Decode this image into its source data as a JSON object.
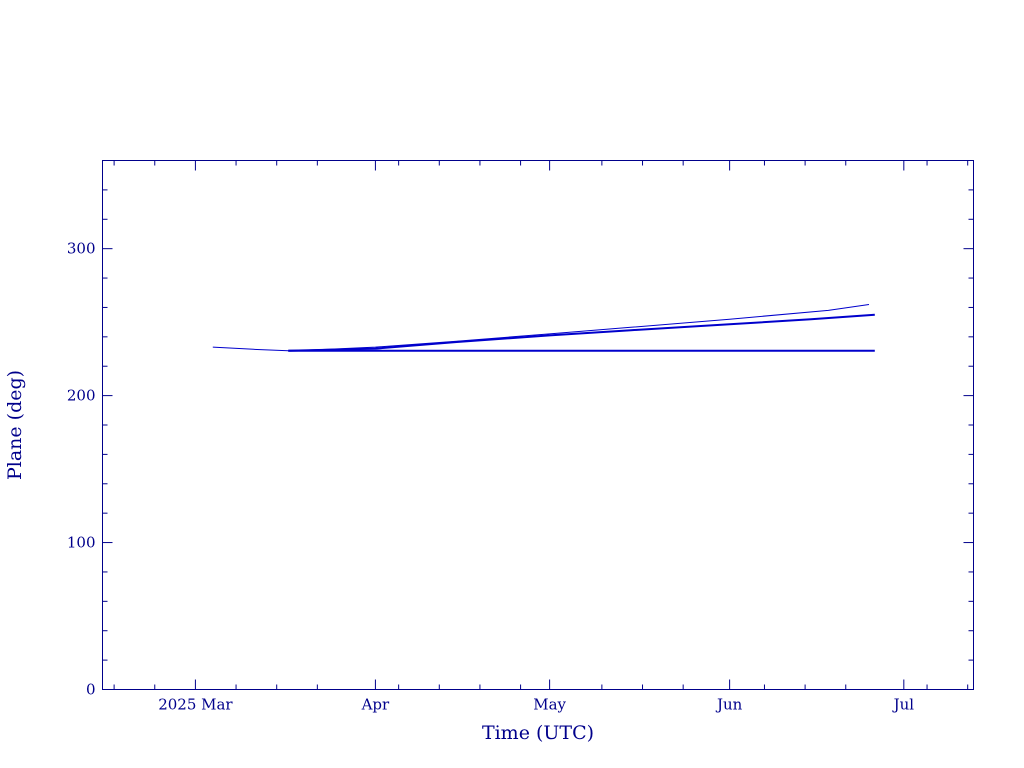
{
  "chart_data": {
    "type": "line",
    "title": "",
    "xlabel": "Time (UTC)",
    "ylabel": "Plane (deg)",
    "x_is_date": true,
    "xlim": [
      "2025-02-13",
      "2025-07-13"
    ],
    "ylim": [
      0,
      360
    ],
    "grid": false,
    "x_major_ticks": [
      {
        "date": "2025-03-01",
        "label": "2025 Mar"
      },
      {
        "date": "2025-04-01",
        "label": "Apr"
      },
      {
        "date": "2025-05-01",
        "label": "May"
      },
      {
        "date": "2025-06-01",
        "label": "Jun"
      },
      {
        "date": "2025-07-01",
        "label": "Jul"
      }
    ],
    "y_major_ticks": [
      0,
      100,
      200,
      300
    ],
    "y_minor_step": 20,
    "colors": {
      "axis": "#00008b",
      "series": "#0000cc"
    },
    "series": [
      {
        "points": [
          [
            "2025-03-04",
            233
          ],
          [
            "2025-03-11",
            231.5
          ],
          [
            "2025-03-17",
            230.5
          ],
          [
            "2025-03-24",
            231.5
          ],
          [
            "2025-04-01",
            233
          ],
          [
            "2025-04-15",
            237
          ],
          [
            "2025-05-01",
            242
          ],
          [
            "2025-05-15",
            246.5
          ],
          [
            "2025-06-01",
            252
          ],
          [
            "2025-06-18",
            258
          ],
          [
            "2025-06-25",
            262
          ]
        ]
      },
      {
        "points": [
          [
            "2025-03-17",
            230.5
          ],
          [
            "2025-04-01",
            232
          ],
          [
            "2025-04-15",
            236.5
          ],
          [
            "2025-05-01",
            241
          ],
          [
            "2025-05-15",
            244.5
          ],
          [
            "2025-06-01",
            248.5
          ],
          [
            "2025-06-15",
            252
          ],
          [
            "2025-06-26",
            255
          ]
        ]
      },
      {
        "points": [
          [
            "2025-03-17",
            230.5
          ],
          [
            "2025-04-15",
            230.5
          ],
          [
            "2025-05-15",
            230.5
          ],
          [
            "2025-06-26",
            230.5
          ]
        ]
      }
    ]
  }
}
